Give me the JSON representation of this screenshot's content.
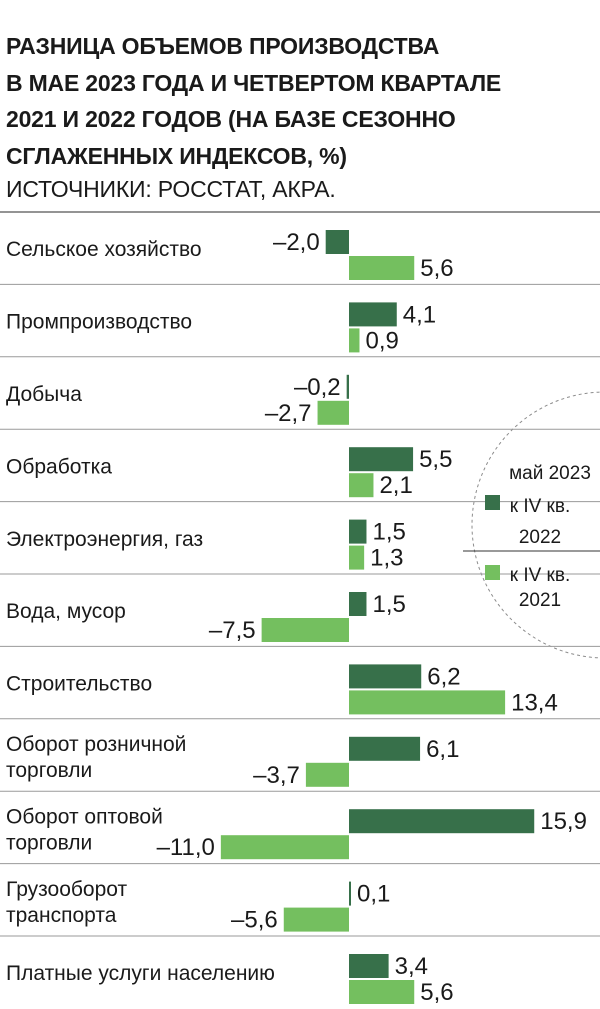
{
  "title_lines": [
    "РАЗНИЦА ОБЪЕМОВ ПРОИЗВОДСТВА",
    "В МАЕ 2023 ГОДА И ЧЕТВЕРТОМ КВАРТАЛЕ",
    "2021 И 2022 ГОДОВ (НА БАЗЕ СЕЗОННО",
    "СГЛАЖЕННЫХ ИНДЕКСОВ, %)"
  ],
  "source": "ИСТОЧНИКИ: РОССТАТ, АКРА.",
  "colors": {
    "dark": "#37704a",
    "light": "#74bf5f",
    "text": "#1a1a1a",
    "rule": "#9a9a9a"
  },
  "chart_data": {
    "type": "bar",
    "orientation": "horizontal",
    "legend_position": "right",
    "categories": [
      [
        "Сельское хозяйство"
      ],
      [
        "Промпроизводство"
      ],
      [
        "Добыча"
      ],
      [
        "Обработка"
      ],
      [
        "Электроэнергия, газ"
      ],
      [
        "Вода, мусор"
      ],
      [
        "Строительство"
      ],
      [
        "Оборот розничной",
        "торговли"
      ],
      [
        "Оборот оптовой",
        "торговли"
      ],
      [
        "Грузооборот",
        "транспорта"
      ],
      [
        "Платные услуги населению"
      ]
    ],
    "series": [
      {
        "name_lines": [
          "май 2023",
          "к IV кв.",
          "2022"
        ],
        "color": "#37704a",
        "values": [
          -2.0,
          4.1,
          -0.2,
          5.5,
          1.5,
          1.5,
          6.2,
          6.1,
          15.9,
          0.1,
          3.4
        ],
        "labels": [
          "–2,0",
          "4,1",
          "–0,2",
          "5,5",
          "1,5",
          "1,5",
          "6,2",
          "6,1",
          "15,9",
          "0,1",
          "3,4"
        ]
      },
      {
        "name_lines": [
          "к IV кв.",
          "2021"
        ],
        "color": "#74bf5f",
        "values": [
          5.6,
          0.9,
          -2.7,
          2.1,
          1.3,
          -7.5,
          13.4,
          -3.7,
          -11.0,
          -5.6,
          5.6
        ],
        "labels": [
          "5,6",
          "0,9",
          "–2,7",
          "2,1",
          "1,3",
          "–7,5",
          "13,4",
          "–3,7",
          "–11,0",
          "–5,6",
          "5,6"
        ]
      }
    ]
  }
}
